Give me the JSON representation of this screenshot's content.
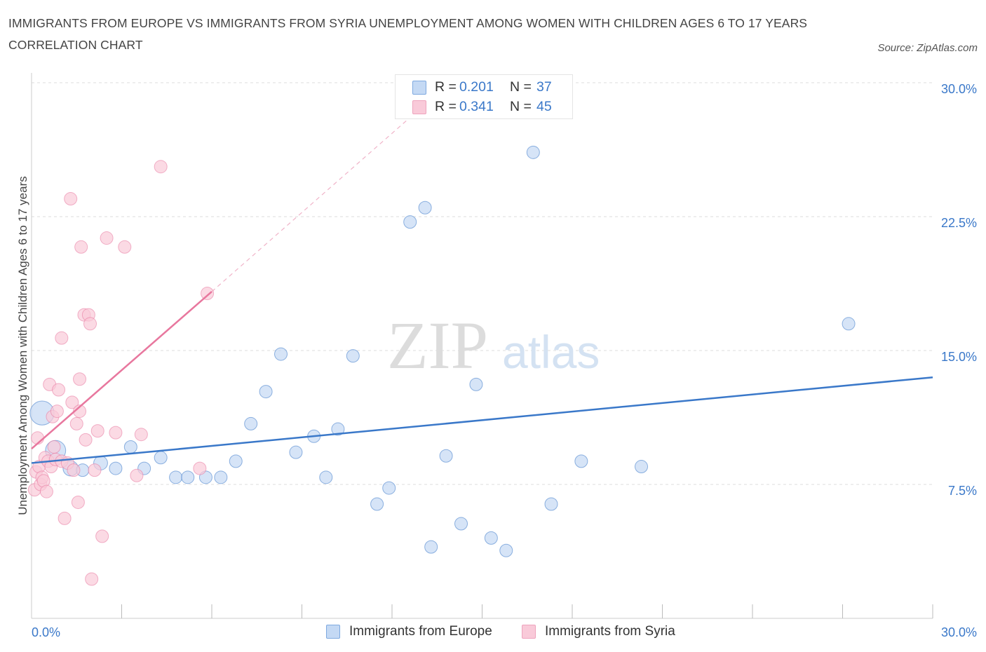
{
  "title": "IMMIGRANTS FROM EUROPE VS IMMIGRANTS FROM SYRIA UNEMPLOYMENT AMONG WOMEN WITH CHILDREN AGES 6 TO 17 YEARS CORRELATION CHART",
  "source": "Source: ZipAtlas.com",
  "watermark": {
    "zip": "ZIP",
    "atlas": "atlas"
  },
  "colors": {
    "europe": "#3a78c9",
    "europe_fill": "#c4d9f4",
    "syria": "#e8779e",
    "syria_fill": "#f9cad9",
    "accent_text": "#3a78c9",
    "grid": "#dddddd"
  },
  "legend": {
    "rows": [
      {
        "r_label": "R = ",
        "r_value": "0.201",
        "n_label": "N = ",
        "n_value": "37"
      },
      {
        "r_label": "R = ",
        "r_value": "0.341",
        "n_label": "N = ",
        "n_value": "45"
      }
    ]
  },
  "chart_data": {
    "type": "scatter",
    "xlabel": "",
    "ylabel": "Unemployment Among Women with Children Ages 6 to 17 years",
    "xlim": [
      0,
      30
    ],
    "ylim": [
      0,
      30
    ],
    "x_tick_labels": [
      {
        "value": 0,
        "label": "0.0%"
      },
      {
        "value": 30,
        "label": "30.0%"
      }
    ],
    "y_tick_labels": [
      {
        "value": 7.5,
        "label": "7.5%"
      },
      {
        "value": 15,
        "label": "15.0%"
      },
      {
        "value": 22.5,
        "label": "22.5%"
      },
      {
        "value": 30,
        "label": "30.0%"
      }
    ],
    "x_minor_ticks": [
      3,
      6,
      9,
      12,
      15,
      18,
      21,
      24,
      27,
      30
    ],
    "series": [
      {
        "name": "Immigrants from Europe",
        "color": "#3a78c9",
        "fill": "#c4d9f4",
        "trend": {
          "x": [
            0,
            30
          ],
          "y": [
            8.7,
            13.5
          ]
        },
        "points": [
          {
            "x": 0.35,
            "y": 11.5,
            "size": 1.9
          },
          {
            "x": 0.8,
            "y": 9.4,
            "size": 1.6
          },
          {
            "x": 1.3,
            "y": 8.4,
            "size": 1.2
          },
          {
            "x": 1.7,
            "y": 8.3,
            "size": 1.0
          },
          {
            "x": 2.3,
            "y": 8.7,
            "size": 1.1
          },
          {
            "x": 2.8,
            "y": 8.4,
            "size": 1.0
          },
          {
            "x": 3.3,
            "y": 9.6,
            "size": 1.0
          },
          {
            "x": 3.75,
            "y": 8.4,
            "size": 1.0
          },
          {
            "x": 4.3,
            "y": 9.0,
            "size": 1.0
          },
          {
            "x": 4.8,
            "y": 7.9,
            "size": 1.0
          },
          {
            "x": 5.2,
            "y": 7.9,
            "size": 1.0
          },
          {
            "x": 5.8,
            "y": 7.9,
            "size": 1.0
          },
          {
            "x": 6.3,
            "y": 7.9,
            "size": 1.0
          },
          {
            "x": 6.8,
            "y": 8.8,
            "size": 1.0
          },
          {
            "x": 7.3,
            "y": 10.9,
            "size": 1.0
          },
          {
            "x": 7.8,
            "y": 12.7,
            "size": 1.0
          },
          {
            "x": 8.3,
            "y": 14.8,
            "size": 1.0
          },
          {
            "x": 8.8,
            "y": 9.3,
            "size": 1.0
          },
          {
            "x": 9.4,
            "y": 10.2,
            "size": 1.0
          },
          {
            "x": 9.8,
            "y": 7.9,
            "size": 1.0
          },
          {
            "x": 10.2,
            "y": 10.6,
            "size": 1.0
          },
          {
            "x": 10.7,
            "y": 14.7,
            "size": 1.0
          },
          {
            "x": 11.5,
            "y": 6.4,
            "size": 1.0
          },
          {
            "x": 11.9,
            "y": 7.3,
            "size": 1.0
          },
          {
            "x": 12.6,
            "y": 22.2,
            "size": 1.0
          },
          {
            "x": 13.1,
            "y": 23.0,
            "size": 1.0
          },
          {
            "x": 13.3,
            "y": 4.0,
            "size": 1.0
          },
          {
            "x": 13.8,
            "y": 9.1,
            "size": 1.0
          },
          {
            "x": 14.3,
            "y": 5.3,
            "size": 1.0
          },
          {
            "x": 14.8,
            "y": 13.1,
            "size": 1.0
          },
          {
            "x": 15.3,
            "y": 4.5,
            "size": 1.0
          },
          {
            "x": 15.8,
            "y": 3.8,
            "size": 1.0
          },
          {
            "x": 16.7,
            "y": 26.1,
            "size": 1.0
          },
          {
            "x": 17.3,
            "y": 6.4,
            "size": 1.0
          },
          {
            "x": 18.3,
            "y": 8.8,
            "size": 1.0
          },
          {
            "x": 20.3,
            "y": 8.5,
            "size": 1.0
          },
          {
            "x": 27.2,
            "y": 16.5,
            "size": 1.0
          }
        ]
      },
      {
        "name": "Immigrants from Syria",
        "color": "#e8779e",
        "fill": "#f9cad9",
        "trend": {
          "x": [
            0,
            6.0
          ],
          "y": [
            9.5,
            18.3
          ]
        },
        "trend_extension": {
          "x": [
            6.0,
            12.7
          ],
          "y": [
            18.3,
            28.2
          ]
        },
        "points": [
          {
            "x": 0.1,
            "y": 7.2,
            "size": 1.0
          },
          {
            "x": 0.15,
            "y": 8.2,
            "size": 1.0
          },
          {
            "x": 0.2,
            "y": 10.1,
            "size": 1.0
          },
          {
            "x": 0.25,
            "y": 8.5,
            "size": 1.0
          },
          {
            "x": 0.3,
            "y": 7.5,
            "size": 1.0
          },
          {
            "x": 0.35,
            "y": 7.9,
            "size": 1.0
          },
          {
            "x": 0.4,
            "y": 7.7,
            "size": 1.0
          },
          {
            "x": 0.45,
            "y": 9.0,
            "size": 1.0
          },
          {
            "x": 0.5,
            "y": 7.1,
            "size": 1.0
          },
          {
            "x": 0.55,
            "y": 8.8,
            "size": 1.0
          },
          {
            "x": 0.6,
            "y": 13.1,
            "size": 1.0
          },
          {
            "x": 0.65,
            "y": 8.5,
            "size": 1.0
          },
          {
            "x": 0.7,
            "y": 11.3,
            "size": 1.0
          },
          {
            "x": 0.75,
            "y": 9.6,
            "size": 1.0
          },
          {
            "x": 0.8,
            "y": 8.9,
            "size": 1.0
          },
          {
            "x": 0.85,
            "y": 11.6,
            "size": 1.0
          },
          {
            "x": 0.9,
            "y": 12.8,
            "size": 1.0
          },
          {
            "x": 1.0,
            "y": 8.8,
            "size": 1.0
          },
          {
            "x": 1.0,
            "y": 15.7,
            "size": 1.0
          },
          {
            "x": 1.1,
            "y": 5.6,
            "size": 1.0
          },
          {
            "x": 1.2,
            "y": 8.7,
            "size": 1.0
          },
          {
            "x": 1.3,
            "y": 23.5,
            "size": 1.0
          },
          {
            "x": 1.35,
            "y": 12.1,
            "size": 1.0
          },
          {
            "x": 1.4,
            "y": 8.3,
            "size": 1.0
          },
          {
            "x": 1.5,
            "y": 10.9,
            "size": 1.0
          },
          {
            "x": 1.55,
            "y": 6.5,
            "size": 1.0
          },
          {
            "x": 1.6,
            "y": 11.6,
            "size": 1.0
          },
          {
            "x": 1.6,
            "y": 13.4,
            "size": 1.0
          },
          {
            "x": 1.65,
            "y": 20.8,
            "size": 1.0
          },
          {
            "x": 1.75,
            "y": 17.0,
            "size": 1.0
          },
          {
            "x": 1.8,
            "y": 10.0,
            "size": 1.0
          },
          {
            "x": 1.9,
            "y": 17.0,
            "size": 1.0
          },
          {
            "x": 1.95,
            "y": 16.5,
            "size": 1.0
          },
          {
            "x": 2.0,
            "y": 2.2,
            "size": 1.0
          },
          {
            "x": 2.1,
            "y": 8.3,
            "size": 1.0
          },
          {
            "x": 2.2,
            "y": 10.5,
            "size": 1.0
          },
          {
            "x": 2.35,
            "y": 4.6,
            "size": 1.0
          },
          {
            "x": 2.5,
            "y": 21.3,
            "size": 1.0
          },
          {
            "x": 2.8,
            "y": 10.4,
            "size": 1.0
          },
          {
            "x": 3.1,
            "y": 20.8,
            "size": 1.0
          },
          {
            "x": 3.5,
            "y": 8.0,
            "size": 1.0
          },
          {
            "x": 3.65,
            "y": 10.3,
            "size": 1.0
          },
          {
            "x": 4.3,
            "y": 25.3,
            "size": 1.0
          },
          {
            "x": 5.6,
            "y": 8.4,
            "size": 1.0
          },
          {
            "x": 5.85,
            "y": 18.2,
            "size": 1.0
          }
        ]
      }
    ]
  }
}
